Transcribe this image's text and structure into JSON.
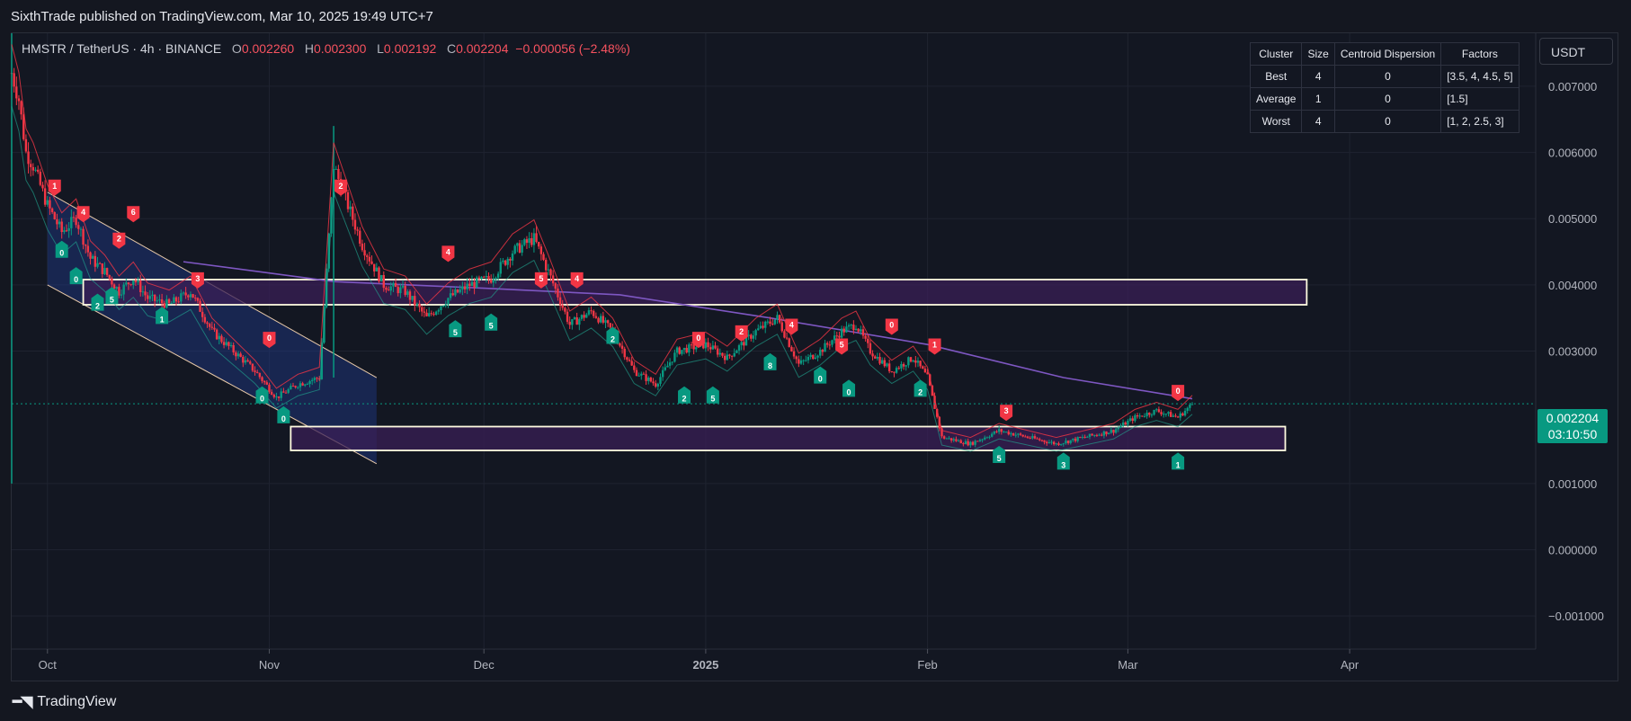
{
  "publisher": "SixthTrade published on TradingView.com, Mar 10, 2025 19:49 UTC+7",
  "legend": {
    "symbol": "HMSTR / TetherUS · 4h · BINANCE",
    "o_label": "O",
    "o": "0.002260",
    "h_label": "H",
    "h": "0.002300",
    "l_label": "L",
    "l": "0.002192",
    "c_label": "C",
    "c": "0.002204",
    "change": "−0.000056 (−2.48%)"
  },
  "currency_button": "USDT",
  "cluster_table": {
    "headers": [
      "Cluster",
      "Size",
      "Centroid Dispersion",
      "Factors"
    ],
    "rows": [
      [
        "Best",
        "4",
        "0",
        "[3.5, 4, 4.5, 5]"
      ],
      [
        "Average",
        "1",
        "0",
        "[1.5]"
      ],
      [
        "Worst",
        "4",
        "0",
        "[1, 2, 2.5, 3]"
      ]
    ]
  },
  "price_tag": {
    "price": "0.002204",
    "countdown": "03:10:50"
  },
  "logo": "TradingView",
  "colors": {
    "background": "#131722",
    "up": "#089981",
    "down": "#f23645",
    "ma": "#7e57c2",
    "zone_border": "#fffbe0",
    "zone_fill": "#3a1f55",
    "channel": "#1e3a8a"
  },
  "chart_data": {
    "type": "candlestick",
    "interval": "4h",
    "ylim": [
      -0.0015,
      0.0078
    ],
    "y_ticks": [
      "0.007000",
      "0.006000",
      "0.005000",
      "0.004000",
      "0.003000",
      "0.001000",
      "0.000000",
      "−0.001000"
    ],
    "y_tick_values": [
      0.007,
      0.006,
      0.005,
      0.004,
      0.003,
      0.001,
      0.0,
      -0.001
    ],
    "x_ticks": [
      "Oct",
      "Nov",
      "Dec",
      "2025",
      "Feb",
      "Mar",
      "Apr"
    ],
    "x_tick_dates": [
      "2024-10-01",
      "2024-11-01",
      "2024-12-01",
      "2025-01-01",
      "2025-02-01",
      "2025-03-01",
      "2025-04-01"
    ],
    "xlim": [
      "2024-09-26",
      "2025-04-27"
    ],
    "price_series": [
      [
        "2024-09-26",
        0.0072
      ],
      [
        "2024-09-27",
        0.0068
      ],
      [
        "2024-09-28",
        0.006
      ],
      [
        "2024-09-29",
        0.0058
      ],
      [
        "2024-10-01",
        0.0052
      ],
      [
        "2024-10-03",
        0.0048
      ],
      [
        "2024-10-05",
        0.005
      ],
      [
        "2024-10-07",
        0.0044
      ],
      [
        "2024-10-09",
        0.0042
      ],
      [
        "2024-10-11",
        0.0039
      ],
      [
        "2024-10-13",
        0.0041
      ],
      [
        "2024-10-15",
        0.0038
      ],
      [
        "2024-10-18",
        0.0037
      ],
      [
        "2024-10-21",
        0.0039
      ],
      [
        "2024-10-24",
        0.0033
      ],
      [
        "2024-10-27",
        0.003
      ],
      [
        "2024-10-30",
        0.0027
      ],
      [
        "2024-11-02",
        0.0023
      ],
      [
        "2024-11-05",
        0.0025
      ],
      [
        "2024-11-08",
        0.0026
      ],
      [
        "2024-11-10",
        0.0058
      ],
      [
        "2024-11-12",
        0.0052
      ],
      [
        "2024-11-14",
        0.0046
      ],
      [
        "2024-11-17",
        0.004
      ],
      [
        "2024-11-20",
        0.0039
      ],
      [
        "2024-11-23",
        0.0035
      ],
      [
        "2024-11-26",
        0.0038
      ],
      [
        "2024-11-29",
        0.004
      ],
      [
        "2024-12-02",
        0.0041
      ],
      [
        "2024-12-05",
        0.0045
      ],
      [
        "2024-12-08",
        0.0047
      ],
      [
        "2024-12-10",
        0.0042
      ],
      [
        "2024-12-13",
        0.0034
      ],
      [
        "2024-12-16",
        0.0036
      ],
      [
        "2024-12-19",
        0.0033
      ],
      [
        "2024-12-22",
        0.0027
      ],
      [
        "2024-12-25",
        0.0025
      ],
      [
        "2024-12-28",
        0.003
      ],
      [
        "2025-01-01",
        0.0031
      ],
      [
        "2025-01-04",
        0.0029
      ],
      [
        "2025-01-08",
        0.0033
      ],
      [
        "2025-01-11",
        0.0035
      ],
      [
        "2025-01-14",
        0.0028
      ],
      [
        "2025-01-17",
        0.003
      ],
      [
        "2025-01-20",
        0.0033
      ],
      [
        "2025-01-22",
        0.0034
      ],
      [
        "2025-01-24",
        0.003
      ],
      [
        "2025-01-27",
        0.0027
      ],
      [
        "2025-01-30",
        0.0029
      ],
      [
        "2025-02-01",
        0.0026
      ],
      [
        "2025-02-03",
        0.0017
      ],
      [
        "2025-02-07",
        0.0016
      ],
      [
        "2025-02-11",
        0.0018
      ],
      [
        "2025-02-15",
        0.0017
      ],
      [
        "2025-02-19",
        0.0016
      ],
      [
        "2025-02-23",
        0.0017
      ],
      [
        "2025-02-27",
        0.0018
      ],
      [
        "2025-03-02",
        0.002
      ],
      [
        "2025-03-05",
        0.0021
      ],
      [
        "2025-03-08",
        0.002
      ],
      [
        "2025-03-10",
        0.0022
      ]
    ],
    "moving_average": [
      [
        "2024-10-20",
        0.00435
      ],
      [
        "2024-11-10",
        0.00405
      ],
      [
        "2024-12-01",
        0.00395
      ],
      [
        "2024-12-20",
        0.00385
      ],
      [
        "2025-01-10",
        0.0035
      ],
      [
        "2025-02-01",
        0.0031
      ],
      [
        "2025-02-20",
        0.0026
      ],
      [
        "2025-03-10",
        0.00228
      ]
    ],
    "trend_channel": {
      "upper": [
        [
          "2024-10-01",
          0.0054
        ],
        [
          "2024-11-16",
          0.0026
        ]
      ],
      "lower": [
        [
          "2024-10-01",
          0.004
        ],
        [
          "2024-11-16",
          0.0013
        ]
      ]
    },
    "zones": [
      {
        "from": "2024-10-06",
        "to": "2025-03-26",
        "low": 0.0037,
        "high": 0.00408
      },
      {
        "from": "2024-11-04",
        "to": "2025-03-23",
        "low": 0.0015,
        "high": 0.00186
      }
    ],
    "buy_signals": [
      [
        "2024-10-03",
        0.0046,
        "0"
      ],
      [
        "2024-10-05",
        0.0042,
        "0"
      ],
      [
        "2024-10-08",
        0.0038,
        "2"
      ],
      [
        "2024-10-10",
        0.0039,
        "5"
      ],
      [
        "2024-10-17",
        0.0036,
        "1"
      ],
      [
        "2024-10-31",
        0.0024,
        "0"
      ],
      [
        "2024-11-03",
        0.0021,
        "0"
      ],
      [
        "2024-11-27",
        0.0034,
        "5"
      ],
      [
        "2024-12-02",
        0.0035,
        "5"
      ],
      [
        "2024-12-19",
        0.0033,
        "2"
      ],
      [
        "2024-12-29",
        0.0024,
        "2"
      ],
      [
        "2025-01-02",
        0.0024,
        "5"
      ],
      [
        "2025-01-10",
        0.0029,
        "8"
      ],
      [
        "2025-01-17",
        0.0027,
        "0"
      ],
      [
        "2025-01-21",
        0.0025,
        "0"
      ],
      [
        "2025-01-31",
        0.0025,
        "2"
      ],
      [
        "2025-02-11",
        0.0015,
        "5"
      ],
      [
        "2025-02-20",
        0.0014,
        "3"
      ],
      [
        "2025-03-08",
        0.0014,
        "1"
      ]
    ],
    "sell_signals": [
      [
        "2024-10-02",
        0.0054,
        "1"
      ],
      [
        "2024-10-06",
        0.005,
        "4"
      ],
      [
        "2024-10-11",
        0.0046,
        "2"
      ],
      [
        "2024-10-13",
        0.005,
        "6"
      ],
      [
        "2024-10-22",
        0.004,
        "3"
      ],
      [
        "2024-11-01",
        0.0031,
        "0"
      ],
      [
        "2024-11-11",
        0.0054,
        "2"
      ],
      [
        "2024-11-26",
        0.0044,
        "4"
      ],
      [
        "2024-12-09",
        0.004,
        "5"
      ],
      [
        "2024-12-14",
        0.004,
        "4"
      ],
      [
        "2024-12-31",
        0.0031,
        "0"
      ],
      [
        "2025-01-06",
        0.0032,
        "2"
      ],
      [
        "2025-01-13",
        0.0033,
        "4"
      ],
      [
        "2025-01-20",
        0.003,
        "5"
      ],
      [
        "2025-01-27",
        0.0033,
        "0"
      ],
      [
        "2025-02-02",
        0.003,
        "1"
      ],
      [
        "2025-02-12",
        0.002,
        "3"
      ],
      [
        "2025-03-08",
        0.0023,
        "0"
      ]
    ]
  }
}
